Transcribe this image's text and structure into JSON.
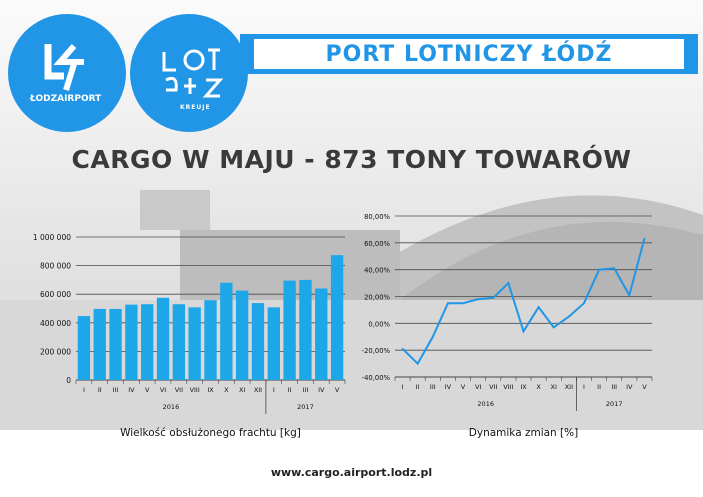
{
  "banner_title": "PORT LOTNICZY ŁÓDŹ",
  "headline": "CARGO W MAJU - 873 TONY TOWARÓW",
  "logo_airport_text": "ŁODZAIRPORT",
  "logo_city_text": "ŁÓDŹ",
  "logo_city_sub": "KREUJE",
  "footer_url": "www.cargo.airport.lodz.pl",
  "colors": {
    "accent": "#2196e6",
    "bar": "#1ea7e8",
    "line": "#2196e6"
  },
  "chart_data": [
    {
      "type": "bar",
      "xlabel": "Wielkość obsłużonego frachtu [kg]",
      "ylabel": "",
      "categories": [
        "I",
        "II",
        "III",
        "IV",
        "V",
        "VI",
        "VII",
        "VIII",
        "IX",
        "X",
        "XI",
        "XII",
        "I",
        "II",
        "III",
        "IV",
        "V"
      ],
      "groups": [
        {
          "label": "2016",
          "count": 12
        },
        {
          "label": "2017",
          "count": 5
        }
      ],
      "values": [
        447000,
        497000,
        497000,
        527000,
        530000,
        575000,
        530000,
        508000,
        558000,
        680000,
        625000,
        538000,
        508000,
        695000,
        700000,
        640000,
        873000
      ],
      "ylim": [
        0,
        1000000
      ],
      "yticks": [
        0,
        200000,
        400000,
        600000,
        800000,
        1000000
      ],
      "ytick_labels": [
        "0",
        "200 000",
        "400 000",
        "600 000",
        "800 000",
        "1 000 000"
      ],
      "grid": true
    },
    {
      "type": "line",
      "xlabel": "Dynamika zmian [%]",
      "ylabel": "",
      "categories": [
        "I",
        "II",
        "III",
        "IV",
        "V",
        "VI",
        "VII",
        "VIII",
        "IX",
        "X",
        "XI",
        "XII",
        "I",
        "II",
        "III",
        "IV",
        "V"
      ],
      "groups": [
        {
          "label": "2016",
          "count": 12
        },
        {
          "label": "2017",
          "count": 5
        }
      ],
      "values": [
        -19,
        -30,
        -10,
        15,
        15,
        18,
        19,
        30,
        -6,
        12,
        -3,
        5,
        15,
        40,
        41,
        21,
        63
      ],
      "ylim": [
        -40,
        80
      ],
      "yticks": [
        -40,
        -20,
        0,
        20,
        40,
        60,
        80
      ],
      "ytick_labels": [
        "-40,00%",
        "-20,00%",
        "0,00%",
        "20,00%",
        "40,00%",
        "60,00%",
        "80,00%"
      ],
      "grid": true
    }
  ]
}
